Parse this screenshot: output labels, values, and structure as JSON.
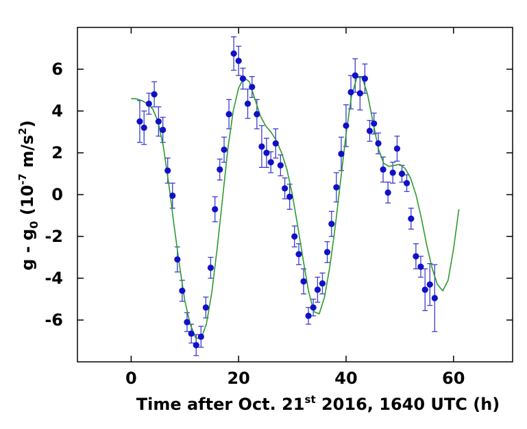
{
  "chart_data": {
    "type": "scatter",
    "title": "",
    "xlabel": {
      "prefix": "Time after Oct. 21",
      "superscript": "st",
      "suffix": " 2016, 1640 UTC (h)"
    },
    "ylabel": {
      "part1": "g - g",
      "subscript": "0",
      "part2": " (10",
      "superscript1": "-7",
      "part3": " m/s",
      "superscript2": "2",
      "part4": ")"
    },
    "xlim": [
      -10,
      71
    ],
    "ylim": [
      -8,
      8
    ],
    "x_ticks": [
      0,
      20,
      40,
      60
    ],
    "x_tick_labels": [
      "0",
      "20",
      "40",
      "60"
    ],
    "y_ticks": [
      6,
      4,
      2,
      0,
      -2,
      -4,
      -6
    ],
    "y_tick_labels": [
      "6",
      "4",
      "2",
      "0",
      "-2",
      "-4",
      "-6"
    ],
    "grid": false,
    "legend": "none",
    "colors": {
      "points": "#1010c8",
      "errorbars": "#3a3ad0",
      "fit": "#2a9a2a",
      "axes": "#000000"
    },
    "series": [
      {
        "type": "scatter_errorbar",
        "points": [
          {
            "x": 1.6,
            "y": 3.5,
            "err": 1.0
          },
          {
            "x": 2.4,
            "y": 3.2,
            "err": 0.8
          },
          {
            "x": 3.3,
            "y": 4.35,
            "err": 0.5
          },
          {
            "x": 4.3,
            "y": 4.8,
            "err": 0.6
          },
          {
            "x": 5.1,
            "y": 3.5,
            "err": 0.7
          },
          {
            "x": 5.9,
            "y": 3.1,
            "err": 0.6
          },
          {
            "x": 6.8,
            "y": 1.15,
            "err": 0.6
          },
          {
            "x": 7.7,
            "y": -0.05,
            "err": 0.6
          },
          {
            "x": 8.6,
            "y": -3.1,
            "err": 0.6
          },
          {
            "x": 9.5,
            "y": -4.6,
            "err": 0.5
          },
          {
            "x": 10.4,
            "y": -6.1,
            "err": 0.45
          },
          {
            "x": 11.2,
            "y": -6.65,
            "err": 0.45
          },
          {
            "x": 12.1,
            "y": -7.2,
            "err": 0.5
          },
          {
            "x": 13.0,
            "y": -6.8,
            "err": 0.5
          },
          {
            "x": 13.9,
            "y": -5.4,
            "err": 0.5
          },
          {
            "x": 14.8,
            "y": -3.5,
            "err": 0.5
          },
          {
            "x": 15.6,
            "y": -0.7,
            "err": 0.6
          },
          {
            "x": 16.5,
            "y": 1.2,
            "err": 0.5
          },
          {
            "x": 17.3,
            "y": 2.15,
            "err": 0.6
          },
          {
            "x": 18.2,
            "y": 3.85,
            "err": 0.7
          },
          {
            "x": 19.1,
            "y": 6.75,
            "err": 0.8
          },
          {
            "x": 20.0,
            "y": 6.4,
            "err": 0.7
          },
          {
            "x": 20.8,
            "y": 5.55,
            "err": 0.5
          },
          {
            "x": 21.7,
            "y": 4.35,
            "err": 0.7
          },
          {
            "x": 22.5,
            "y": 5.15,
            "err": 0.5
          },
          {
            "x": 23.4,
            "y": 3.85,
            "err": 0.7
          },
          {
            "x": 24.3,
            "y": 2.3,
            "err": 1.0
          },
          {
            "x": 25.2,
            "y": 2.0,
            "err": 0.7
          },
          {
            "x": 26.0,
            "y": 1.55,
            "err": 0.5
          },
          {
            "x": 26.9,
            "y": 2.45,
            "err": 0.7
          },
          {
            "x": 27.8,
            "y": 1.4,
            "err": 0.5
          },
          {
            "x": 28.6,
            "y": 0.3,
            "err": 0.5
          },
          {
            "x": 29.5,
            "y": -0.1,
            "err": 0.6
          },
          {
            "x": 30.4,
            "y": -2.0,
            "err": 0.5
          },
          {
            "x": 31.2,
            "y": -2.85,
            "err": 0.5
          },
          {
            "x": 32.1,
            "y": -4.15,
            "err": 0.6
          },
          {
            "x": 33.0,
            "y": -5.8,
            "err": 0.4
          },
          {
            "x": 33.9,
            "y": -5.4,
            "err": 0.4
          },
          {
            "x": 34.7,
            "y": -4.55,
            "err": 0.6
          },
          {
            "x": 35.6,
            "y": -4.25,
            "err": 0.5
          },
          {
            "x": 36.5,
            "y": -2.75,
            "err": 0.5
          },
          {
            "x": 37.3,
            "y": -1.4,
            "err": 0.6
          },
          {
            "x": 38.2,
            "y": 0.35,
            "err": 0.7
          },
          {
            "x": 39.1,
            "y": 1.95,
            "err": 0.8
          },
          {
            "x": 40.0,
            "y": 3.3,
            "err": 1.0
          },
          {
            "x": 40.9,
            "y": 4.9,
            "err": 0.8
          },
          {
            "x": 41.7,
            "y": 5.7,
            "err": 0.8
          },
          {
            "x": 42.6,
            "y": 4.85,
            "err": 0.8
          },
          {
            "x": 43.5,
            "y": 5.55,
            "err": 0.7
          },
          {
            "x": 44.4,
            "y": 3.05,
            "err": 0.5
          },
          {
            "x": 45.2,
            "y": 3.4,
            "err": 0.5
          },
          {
            "x": 46.0,
            "y": 2.45,
            "err": 0.5
          },
          {
            "x": 46.9,
            "y": 1.2,
            "err": 0.6
          },
          {
            "x": 47.8,
            "y": 0.1,
            "err": 0.5
          },
          {
            "x": 48.7,
            "y": 1.05,
            "err": 0.5
          },
          {
            "x": 49.5,
            "y": 2.2,
            "err": 0.6
          },
          {
            "x": 50.4,
            "y": 1.0,
            "err": 0.4
          },
          {
            "x": 51.3,
            "y": 0.55,
            "err": 0.4
          },
          {
            "x": 52.1,
            "y": -1.15,
            "err": 0.5
          },
          {
            "x": 53.0,
            "y": -2.95,
            "err": 0.6
          },
          {
            "x": 53.9,
            "y": -3.45,
            "err": 0.5
          },
          {
            "x": 54.7,
            "y": -4.55,
            "err": 1.0
          },
          {
            "x": 55.6,
            "y": -4.3,
            "err": 1.0
          },
          {
            "x": 56.5,
            "y": -4.95,
            "err": 1.6
          }
        ]
      },
      {
        "type": "line",
        "points": [
          [
            0,
            4.6
          ],
          [
            1,
            4.58
          ],
          [
            2,
            4.5
          ],
          [
            3,
            4.35
          ],
          [
            4,
            4.1
          ],
          [
            5,
            3.5
          ],
          [
            6,
            2.3
          ],
          [
            7,
            0.5
          ],
          [
            8,
            -1.5
          ],
          [
            9,
            -3.4
          ],
          [
            10,
            -5.1
          ],
          [
            11,
            -6.2
          ],
          [
            12,
            -6.85
          ],
          [
            13,
            -6.9
          ],
          [
            14,
            -6.2
          ],
          [
            15,
            -4.7
          ],
          [
            16,
            -2.6
          ],
          [
            17,
            -0.2
          ],
          [
            18,
            2.2
          ],
          [
            19,
            4.0
          ],
          [
            20,
            5.1
          ],
          [
            21,
            5.6
          ],
          [
            22,
            5.4
          ],
          [
            23,
            4.6
          ],
          [
            24,
            3.8
          ],
          [
            25,
            3.3
          ],
          [
            26,
            3.0
          ],
          [
            27,
            2.6
          ],
          [
            28,
            2.0
          ],
          [
            29,
            1.2
          ],
          [
            30,
            0.0
          ],
          [
            31,
            -1.5
          ],
          [
            32,
            -3.1
          ],
          [
            33,
            -4.6
          ],
          [
            34,
            -5.6
          ],
          [
            35,
            -5.7
          ],
          [
            36,
            -4.9
          ],
          [
            37,
            -3.4
          ],
          [
            38,
            -1.5
          ],
          [
            39,
            0.7
          ],
          [
            40,
            2.9
          ],
          [
            41,
            4.7
          ],
          [
            42,
            5.6
          ],
          [
            43,
            5.6
          ],
          [
            44,
            4.8
          ],
          [
            45,
            3.5
          ],
          [
            46,
            2.2
          ],
          [
            47,
            1.5
          ],
          [
            48,
            1.35
          ],
          [
            49,
            1.4
          ],
          [
            50,
            1.45
          ],
          [
            51,
            1.25
          ],
          [
            52,
            0.8
          ],
          [
            53,
            0.0
          ],
          [
            54,
            -1.1
          ],
          [
            55,
            -2.4
          ],
          [
            56,
            -3.5
          ],
          [
            57,
            -4.3
          ],
          [
            58,
            -4.6
          ],
          [
            59,
            -4.1
          ],
          [
            60,
            -2.6
          ],
          [
            61,
            -0.7
          ]
        ]
      }
    ]
  }
}
